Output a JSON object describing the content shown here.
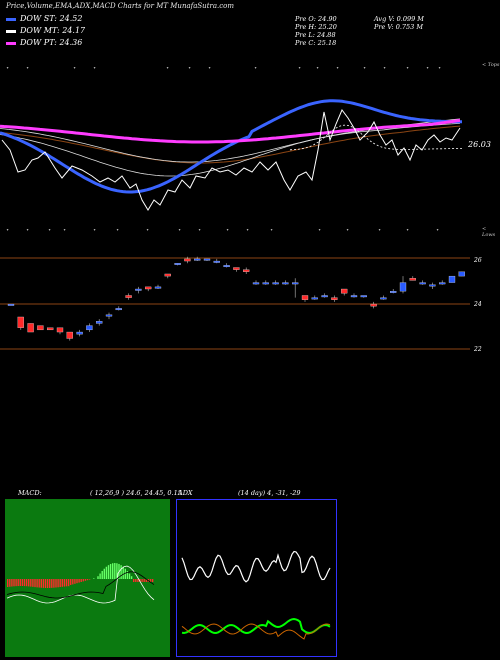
{
  "title": "Price,Volume,EMA,ADX,MACD Charts for MT MunafaSutra.com",
  "legend": [
    {
      "label": "DOW ST: 24.52",
      "color": "#3a64ff"
    },
    {
      "label": "DOW MT: 24.17",
      "color": "#ffffff"
    },
    {
      "label": "DOW PT: 24.36",
      "color": "#ff3cff"
    }
  ],
  "stats": {
    "open": "Pre  O: 24.90",
    "high": "Pre  H: 25.20",
    "low": "Pre  L: 24.88",
    "close": "Pre  C: 25.18",
    "avg_vol": "Avg V: 0.099 M",
    "pre_vol": "Pre  V: 0.753 M"
  },
  "corner_labels": {
    "tops": "< Tops",
    "lows": "< Lows"
  },
  "ema_last_value": "26.03",
  "price_levels": [
    "26",
    "24",
    "22"
  ],
  "macd": {
    "label": "MACD:",
    "params": "( 12,26,9 ) 24.6, 24.45, 0.15"
  },
  "adx": {
    "label": "ADX",
    "params": "(14 day) 4, -31, -29"
  },
  "colors": {
    "ema_short": "#3a64ff",
    "ema_mid": "#ffffff",
    "ema_long": "#ff3cff",
    "ema_brown": "#8b4513",
    "bull_candle": "#2a5cff",
    "bear_candle": "#ff2a2a",
    "macd_bg": "#0b7a10",
    "adx_border": "#3333ff",
    "level_line": "#8b4513"
  },
  "chart_data": {
    "type": "line",
    "title": "Price,Volume,EMA,ADX,MACD Charts for MT MunafaSutra.com",
    "series": [
      {
        "name": "DOW ST",
        "last": 24.52
      },
      {
        "name": "DOW MT",
        "last": 24.17
      },
      {
        "name": "DOW PT",
        "last": 24.36
      }
    ],
    "candles": [
      [
        0,
        23.9,
        23.9,
        23.9,
        23.9
      ],
      [
        1,
        23.3,
        23.3,
        22.8,
        22.7
      ],
      [
        2,
        23.0,
        23.0,
        22.6,
        22.6
      ],
      [
        3,
        22.9,
        22.9,
        22.7,
        22.7
      ],
      [
        4,
        22.8,
        22.8,
        22.7,
        22.7
      ],
      [
        5,
        22.8,
        22.8,
        22.6,
        22.5
      ],
      [
        6,
        22.6,
        22.6,
        22.3,
        22.2
      ],
      [
        7,
        22.5,
        22.7,
        22.6,
        22.4
      ],
      [
        8,
        22.7,
        23.0,
        22.9,
        22.6
      ],
      [
        9,
        23.0,
        23.2,
        23.1,
        22.9
      ],
      [
        10,
        23.4,
        23.5,
        23.4,
        23.2
      ],
      [
        11,
        23.7,
        23.8,
        23.7,
        23.6
      ],
      [
        12,
        24.3,
        24.4,
        24.2,
        24.1
      ],
      [
        13,
        24.6,
        24.7,
        24.6,
        24.4
      ],
      [
        14,
        24.7,
        24.7,
        24.6,
        24.5
      ],
      [
        15,
        24.7,
        24.8,
        24.7,
        24.6
      ],
      [
        16,
        25.3,
        25.3,
        25.2,
        25.1
      ],
      [
        17,
        25.8,
        25.8,
        25.8,
        25.7
      ],
      [
        18,
        26.0,
        26.1,
        25.9,
        25.8
      ],
      [
        19,
        26.0,
        26.1,
        26.0,
        25.9
      ],
      [
        20,
        26.0,
        26.0,
        26.0,
        25.9
      ],
      [
        21,
        25.9,
        26.0,
        25.9,
        25.8
      ],
      [
        22,
        25.7,
        25.8,
        25.7,
        25.6
      ],
      [
        23,
        25.6,
        25.6,
        25.5,
        25.4
      ],
      [
        24,
        25.5,
        25.6,
        25.4,
        25.3
      ],
      [
        25,
        24.9,
        25.0,
        24.9,
        24.8
      ],
      [
        26,
        24.9,
        25.0,
        24.9,
        24.8
      ],
      [
        27,
        24.9,
        25.0,
        24.9,
        24.8
      ],
      [
        28,
        24.9,
        25.0,
        24.9,
        24.8
      ],
      [
        29,
        24.9,
        25.1,
        24.9,
        24.2
      ],
      [
        30,
        24.3,
        24.3,
        24.1,
        24.0
      ],
      [
        31,
        24.2,
        24.3,
        24.2,
        24.1
      ],
      [
        32,
        24.3,
        24.4,
        24.3,
        24.2
      ],
      [
        33,
        24.2,
        24.3,
        24.1,
        24.0
      ],
      [
        34,
        24.6,
        24.6,
        24.4,
        24.3
      ],
      [
        35,
        24.3,
        24.4,
        24.3,
        24.2
      ],
      [
        36,
        24.3,
        24.3,
        24.3,
        24.2
      ],
      [
        37,
        23.9,
        24.0,
        23.8,
        23.7
      ],
      [
        38,
        24.2,
        24.3,
        24.2,
        24.1
      ],
      [
        39,
        24.5,
        24.6,
        24.5,
        24.4
      ],
      [
        40,
        24.5,
        25.2,
        24.9,
        24.4
      ],
      [
        41,
        25.1,
        25.2,
        25.0,
        25.0
      ],
      [
        42,
        24.9,
        25.0,
        24.9,
        24.8
      ],
      [
        43,
        24.8,
        24.9,
        24.8,
        24.6
      ],
      [
        44,
        24.9,
        25.0,
        24.9,
        24.8
      ],
      [
        45,
        24.9,
        25.2,
        25.2,
        24.9
      ],
      [
        46,
        25.2,
        25.4,
        25.4,
        25.2
      ]
    ],
    "macd_values": [
      24.6,
      24.45,
      0.15
    ],
    "adx_values": [
      4,
      -31,
      -29
    ]
  }
}
